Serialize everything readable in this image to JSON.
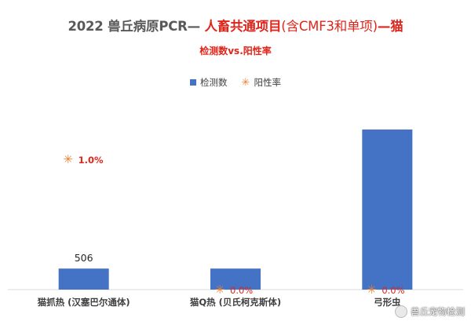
{
  "header": {
    "title_gray": "2022 兽丘病原PCR—",
    "title_red_bold": "人畜共通项目",
    "title_red_paren": "(含CMF3和单项)",
    "title_red_tail": "—猫",
    "subtitle": "检测数vs.阳性率"
  },
  "watermark": {
    "text": "兽丘宠物检测",
    "icon": "wechat-icon"
  },
  "chart_data": {
    "type": "bar",
    "title": "2022 兽丘病原PCR— 人畜共通项目(含CMF3和单项)—猫",
    "subtitle": "检测数vs.阳性率",
    "categories": [
      "猫抓热 (汉塞巴尔通体)",
      "猫Q热 (贝氏柯克斯体)",
      "弓形虫"
    ],
    "series": [
      {
        "name": "检测数",
        "kind": "bar",
        "color": "#4472c4",
        "values": [
          506,
          506,
          3850
        ],
        "data_labels": [
          "506",
          "",
          ""
        ]
      },
      {
        "name": "阳性率",
        "kind": "marker",
        "color": "#ed7d31",
        "values": [
          1.0,
          0.0,
          0.0
        ],
        "data_labels": [
          "1.0%",
          "0.0%",
          "0.0%"
        ]
      }
    ],
    "ylim": [
      0,
      4700
    ],
    "y2lim": [
      0,
      1.5
    ],
    "grid": false,
    "legend_position": "top",
    "baseline_color": "#d9d9d9",
    "label_color": "#e0251b"
  }
}
